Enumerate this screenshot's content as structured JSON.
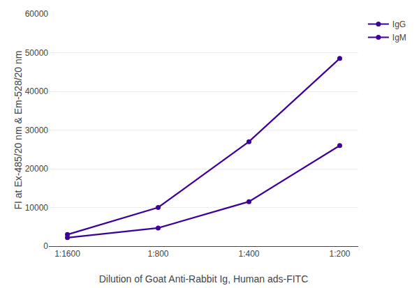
{
  "chart_data": {
    "type": "line",
    "xlabel": "Dilution of Goat Anti-Rabbit Ig, Human ads-FITC",
    "ylabel": "FI at Ex-485/20 nm & Em-528/20 nm",
    "categories": [
      "1:1600",
      "1:800",
      "1:400",
      "1:200"
    ],
    "series": [
      {
        "name": "IgG",
        "color": "#3d0099",
        "marker": "circle",
        "values": [
          3000,
          10000,
          27000,
          48500
        ]
      },
      {
        "name": "IgM",
        "color": "#3d0099",
        "marker": "circle",
        "values": [
          2200,
          4700,
          11500,
          26000
        ]
      }
    ],
    "ylim": [
      0,
      60000
    ],
    "yticks": [
      0,
      10000,
      20000,
      30000,
      40000,
      50000,
      60000
    ],
    "grid": true,
    "legend": "upper right"
  }
}
